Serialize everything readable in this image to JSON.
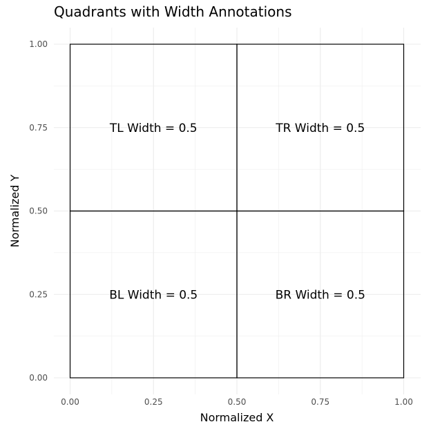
{
  "chart_data": {
    "type": "quadrant-rectangles",
    "title": "Quadrants with Width Annotations",
    "xlabel": "Normalized X",
    "ylabel": "Normalized Y",
    "xlim": [
      0,
      1
    ],
    "ylim": [
      0,
      1
    ],
    "x_ticks": [
      0,
      0.25,
      0.5,
      0.75,
      1
    ],
    "x_tick_labels": [
      "0.00",
      "0.25",
      "0.50",
      "0.75",
      "1.00"
    ],
    "y_ticks": [
      0,
      0.25,
      0.5,
      0.75,
      1
    ],
    "y_tick_labels": [
      "0.00",
      "0.25",
      "0.50",
      "0.75",
      "1.00"
    ],
    "grid": true,
    "rectangles": [
      {
        "xmin": 0,
        "xmax": 0.5,
        "ymin": 0.5,
        "ymax": 1
      },
      {
        "xmin": 0.5,
        "xmax": 1,
        "ymin": 0.5,
        "ymax": 1
      },
      {
        "xmin": 0,
        "xmax": 0.5,
        "ymin": 0,
        "ymax": 0.5
      },
      {
        "xmin": 0.5,
        "xmax": 1,
        "ymin": 0,
        "ymax": 0.5
      }
    ],
    "annotations": [
      {
        "x": 0.25,
        "y": 0.75,
        "text": "TL Width = 0.5"
      },
      {
        "x": 0.75,
        "y": 0.75,
        "text": "TR Width = 0.5"
      },
      {
        "x": 0.25,
        "y": 0.25,
        "text": "BL Width = 0.5"
      },
      {
        "x": 0.75,
        "y": 0.25,
        "text": "BR Width = 0.5"
      }
    ],
    "colors": {
      "outline": "#000000",
      "grid": "#ebebeb",
      "background": "#ffffff"
    }
  }
}
